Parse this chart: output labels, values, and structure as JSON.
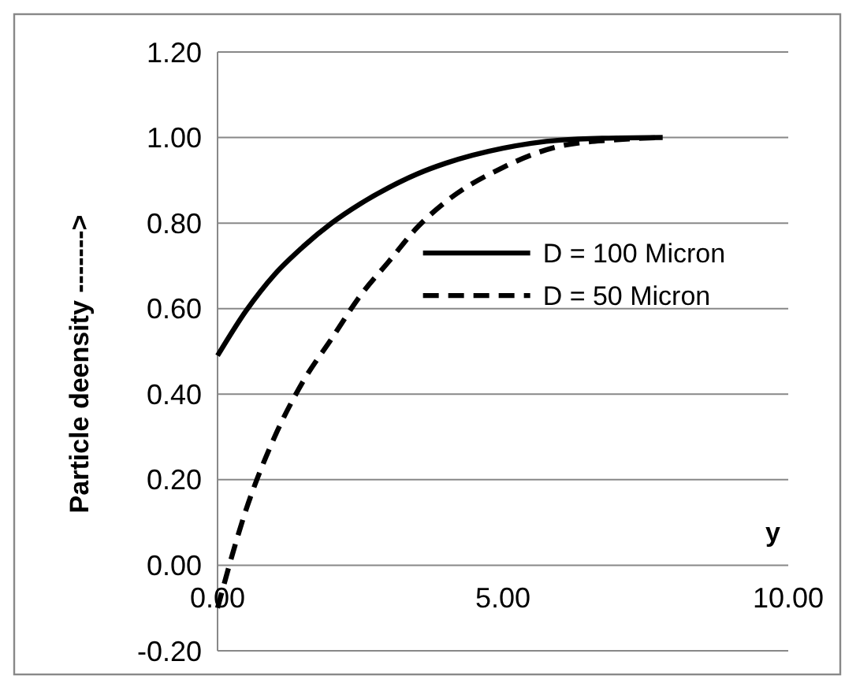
{
  "chart_data": {
    "type": "line",
    "xlabel": "y",
    "ylabel": "Particle deensity ------->",
    "x": [
      0,
      0.5,
      1,
      1.5,
      2,
      2.5,
      3,
      3.5,
      4,
      5,
      6,
      7,
      7.8
    ],
    "series": [
      {
        "name": "D = 100 Micron",
        "color": "#000000",
        "line_style": "solid",
        "values": [
          0.49,
          0.595,
          0.68,
          0.745,
          0.8,
          0.845,
          0.883,
          0.915,
          0.94,
          0.975,
          0.994,
          0.999,
          1.0
        ]
      },
      {
        "name": "D = 50 Micron",
        "color": "#000000",
        "line_style": "dashed",
        "values": [
          -0.1,
          0.13,
          0.3,
          0.43,
          0.53,
          0.63,
          0.71,
          0.79,
          0.85,
          0.93,
          0.98,
          0.995,
          1.0
        ]
      }
    ],
    "xlim": [
      0,
      10
    ],
    "xticks": [
      {
        "value": 0,
        "label": "0.00"
      },
      {
        "value": 5,
        "label": "5.00"
      },
      {
        "value": 10,
        "label": "10.00"
      }
    ],
    "ylim": [
      -0.2,
      1.2
    ],
    "yticks": [
      {
        "value": -0.2,
        "label": "-0.20"
      },
      {
        "value": 0,
        "label": "0.00"
      },
      {
        "value": 0.2,
        "label": "0.20"
      },
      {
        "value": 0.4,
        "label": "0.40"
      },
      {
        "value": 0.6,
        "label": "0.60"
      },
      {
        "value": 0.8,
        "label": "0.80"
      },
      {
        "value": 1,
        "label": "1.00"
      },
      {
        "value": 1.2,
        "label": "1.20"
      }
    ],
    "grid": "y",
    "legend": "right"
  }
}
